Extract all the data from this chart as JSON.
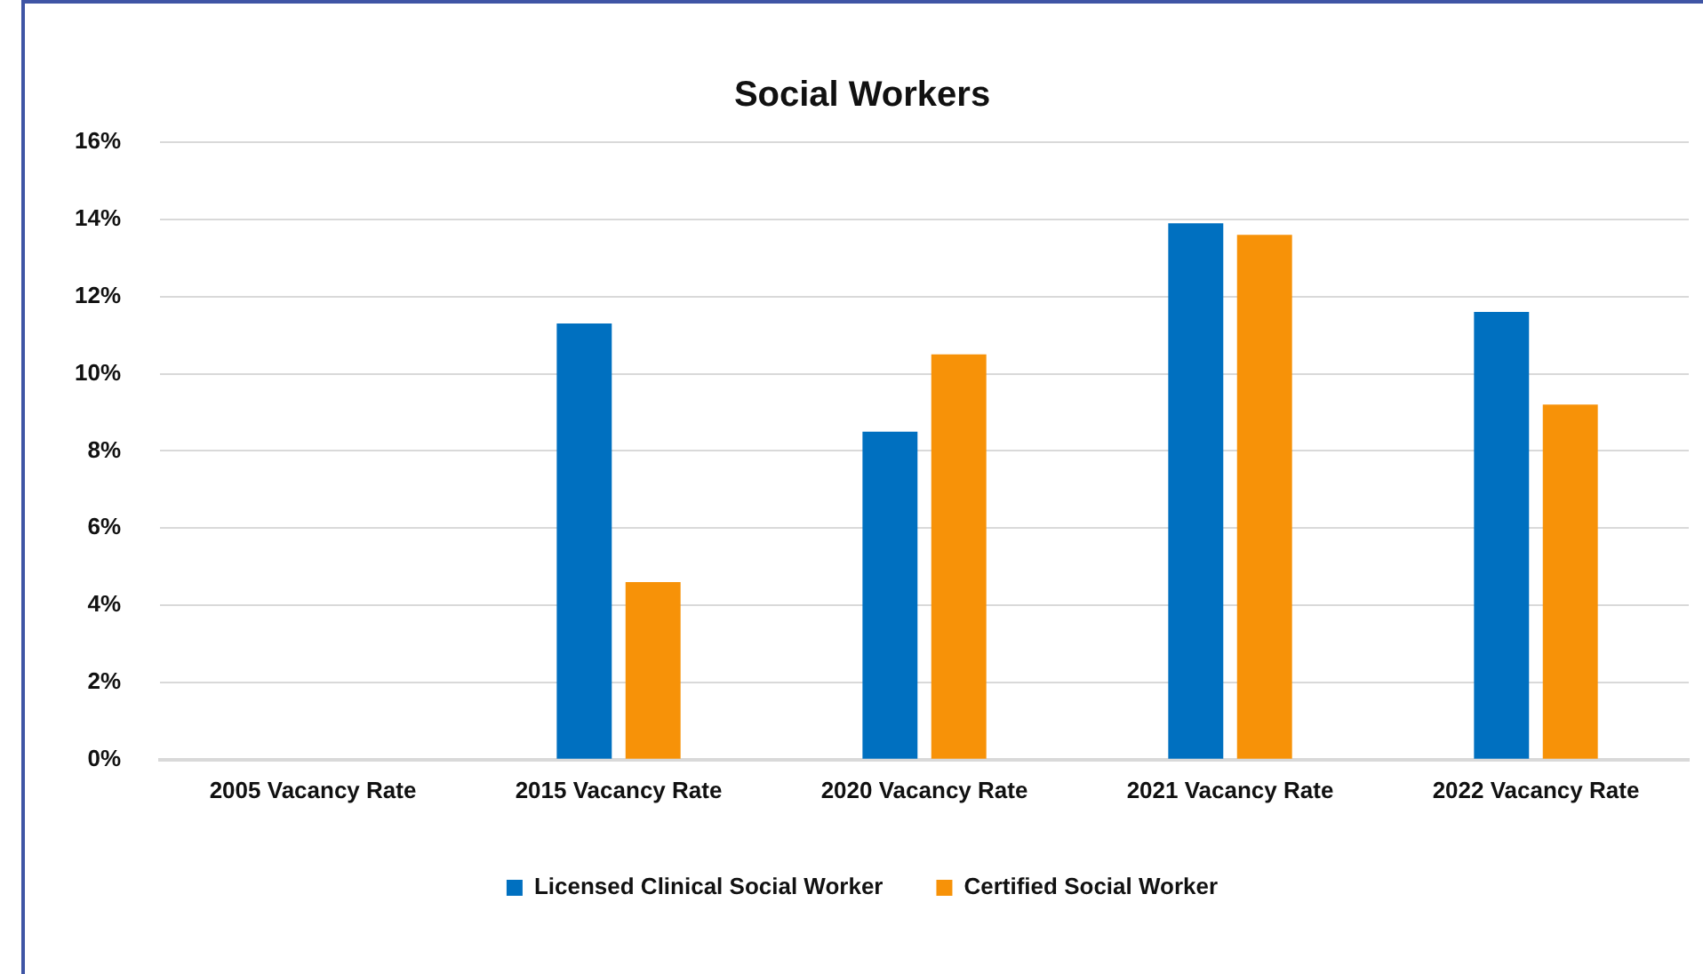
{
  "chart_data": {
    "type": "bar",
    "title": "Social Workers",
    "categories": [
      "2005 Vacancy Rate",
      "2015 Vacancy Rate",
      "2020 Vacancy Rate",
      "2021 Vacancy Rate",
      "2022 Vacancy Rate"
    ],
    "series": [
      {
        "name": "Licensed Clinical Social Worker",
        "color": "#0070c0",
        "values": [
          null,
          11.3,
          8.5,
          13.9,
          11.6
        ]
      },
      {
        "name": "Certified Social Worker",
        "color": "#f79208",
        "values": [
          null,
          4.6,
          10.5,
          13.6,
          9.2
        ]
      }
    ],
    "ylim": [
      0,
      16
    ],
    "yticks": [
      {
        "value": 0,
        "label": "0%"
      },
      {
        "value": 2,
        "label": "2%"
      },
      {
        "value": 4,
        "label": "4%"
      },
      {
        "value": 6,
        "label": "6%"
      },
      {
        "value": 8,
        "label": "8%"
      },
      {
        "value": 10,
        "label": "10%"
      },
      {
        "value": 12,
        "label": "12%"
      },
      {
        "value": 14,
        "label": "14%"
      },
      {
        "value": 16,
        "label": "16%"
      }
    ],
    "grid": "y",
    "legend": "bottom"
  }
}
